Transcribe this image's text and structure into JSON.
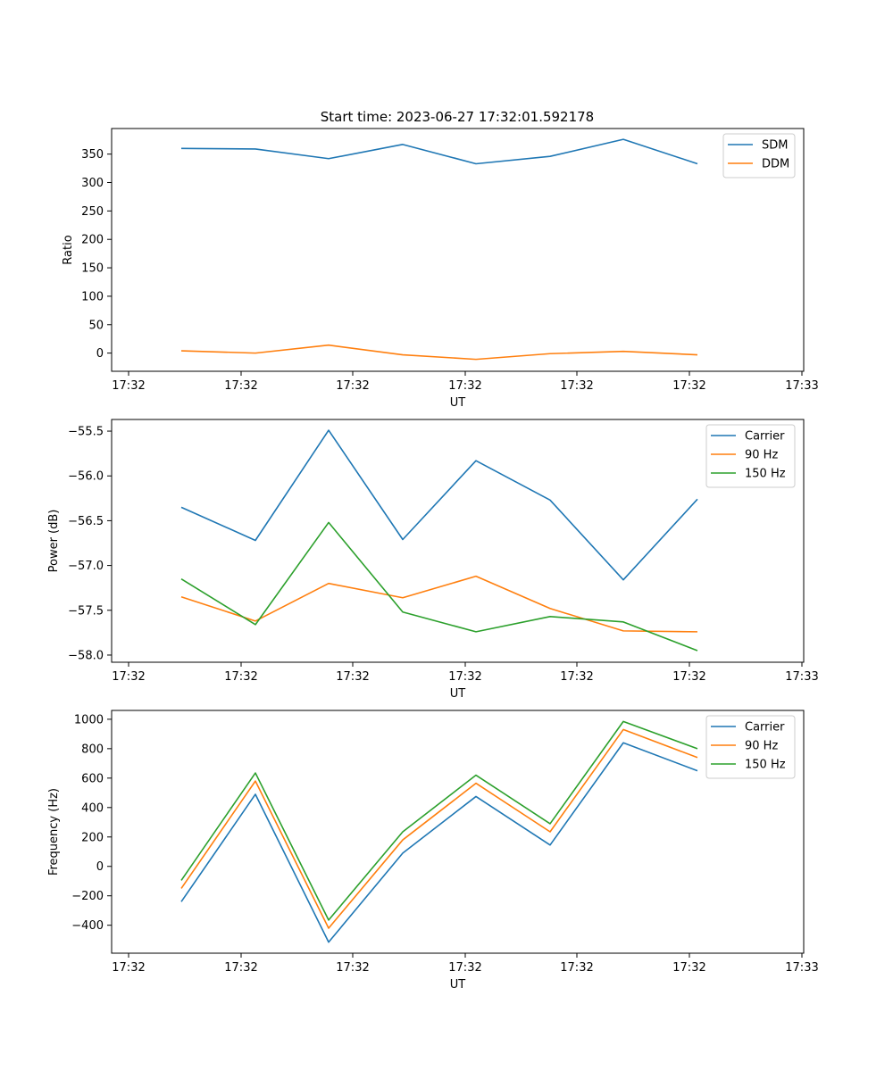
{
  "title": "Start time: 2023-06-27 17:32:01.592178",
  "chart_data": [
    {
      "type": "line",
      "title": "Start time: 2023-06-27 17:32:01.592178",
      "xlabel": "UT",
      "ylabel": "Ratio",
      "x_tick_labels": [
        "17:32",
        "17:32",
        "17:32",
        "17:32",
        "17:32",
        "17:32",
        "17:32"
      ],
      "x_last_tick_label": "17:33",
      "y_ticks": [
        0,
        50,
        100,
        150,
        200,
        250,
        300,
        350
      ],
      "y_tick_labels": [
        "0",
        "50",
        "100",
        "150",
        "200",
        "250",
        "300",
        "350"
      ],
      "ylim": [
        -32,
        395
      ],
      "legend_position": "upper right",
      "grid": false,
      "series": [
        {
          "name": "SDM",
          "color": "#1f77b4",
          "values": [
            360,
            359,
            342,
            367,
            333,
            346,
            376,
            333
          ]
        },
        {
          "name": "DDM",
          "color": "#ff7f0e",
          "values": [
            4,
            0,
            14,
            -3,
            -11,
            -1,
            3,
            -3
          ]
        }
      ]
    },
    {
      "type": "line",
      "title": "",
      "xlabel": "UT",
      "ylabel": "Power (dB)",
      "x_tick_labels": [
        "17:32",
        "17:32",
        "17:32",
        "17:32",
        "17:32",
        "17:32",
        "17:32"
      ],
      "x_last_tick_label": "17:33",
      "y_ticks": [
        -58.0,
        -57.5,
        -57.0,
        -56.5,
        -56.0,
        -55.5
      ],
      "y_tick_labels": [
        "−58.0",
        "−57.5",
        "−57.0",
        "−56.5",
        "−56.0",
        "−55.5"
      ],
      "ylim": [
        -58.08,
        -55.37
      ],
      "legend_position": "upper right",
      "grid": false,
      "series": [
        {
          "name": "Carrier",
          "color": "#1f77b4",
          "values": [
            -56.35,
            -56.72,
            -55.49,
            -56.71,
            -55.83,
            -56.27,
            -57.16,
            -56.26
          ]
        },
        {
          "name": "90 Hz",
          "color": "#ff7f0e",
          "values": [
            -57.35,
            -57.62,
            -57.2,
            -57.36,
            -57.12,
            -57.48,
            -57.73,
            -57.74
          ]
        },
        {
          "name": "150 Hz",
          "color": "#2ca02c",
          "values": [
            -57.15,
            -57.66,
            -56.52,
            -57.52,
            -57.74,
            -57.57,
            -57.63,
            -57.95
          ]
        }
      ]
    },
    {
      "type": "line",
      "title": "",
      "xlabel": "UT",
      "ylabel": "Frequency (Hz)",
      "x_tick_labels": [
        "17:32",
        "17:32",
        "17:32",
        "17:32",
        "17:32",
        "17:32",
        "17:32"
      ],
      "x_last_tick_label": "17:33",
      "y_ticks": [
        -400,
        -200,
        0,
        200,
        400,
        600,
        800,
        1000
      ],
      "y_tick_labels": [
        "−400",
        "−200",
        "0",
        "200",
        "400",
        "600",
        "800",
        "1000"
      ],
      "ylim": [
        -590,
        1060
      ],
      "legend_position": "upper right",
      "grid": false,
      "series": [
        {
          "name": "Carrier",
          "color": "#1f77b4",
          "values": [
            -240,
            490,
            -515,
            90,
            475,
            145,
            840,
            650
          ]
        },
        {
          "name": "90 Hz",
          "color": "#ff7f0e",
          "values": [
            -150,
            580,
            -420,
            180,
            565,
            235,
            930,
            740
          ]
        },
        {
          "name": "150 Hz",
          "color": "#2ca02c",
          "values": [
            -95,
            635,
            -365,
            235,
            620,
            290,
            985,
            800
          ]
        }
      ]
    }
  ]
}
